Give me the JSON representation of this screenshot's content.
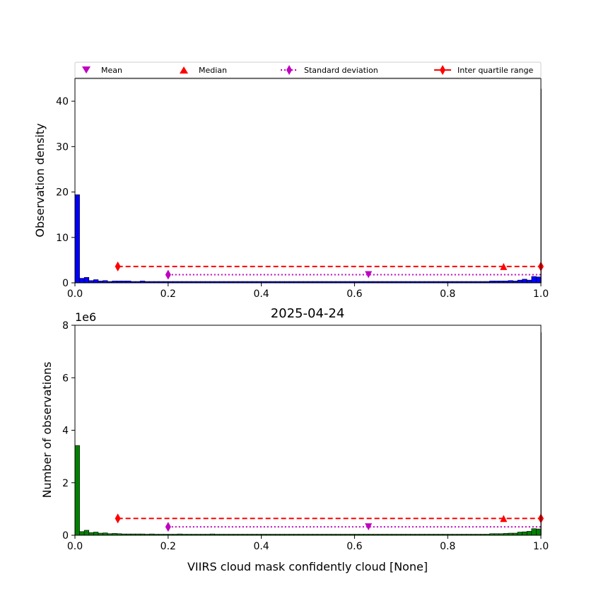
{
  "legend": {
    "mean": "Mean",
    "median": "Median",
    "std": "Standard deviation",
    "iqr": "Inter quartile range"
  },
  "colors": {
    "top_bars": "#0000ff",
    "bottom_bars": "#008000",
    "mean_marker": "#bf00bf",
    "median_marker": "#ff0000",
    "std_line": "#bf00bf",
    "iqr_line": "#ff0000"
  },
  "chart_data": [
    {
      "type": "bar",
      "title": "",
      "xlabel": "",
      "ylabel": "Observation density",
      "xlim": [
        0.0,
        1.0
      ],
      "ylim": [
        0,
        45
      ],
      "xticks": [
        "0.0",
        "0.2",
        "0.4",
        "0.6",
        "0.8",
        "1.0"
      ],
      "yticks": [
        "0",
        "10",
        "20",
        "30",
        "40"
      ],
      "bin_width": 0.01,
      "values": [
        19.4,
        1.0,
        1.2,
        0.5,
        0.7,
        0.4,
        0.5,
        0.3,
        0.4,
        0.4,
        0.4,
        0.4,
        0.3,
        0.3,
        0.4,
        0.3,
        0.3,
        0.3,
        0.3,
        0.3,
        0.3,
        0.3,
        0.3,
        0.3,
        0.3,
        0.3,
        0.3,
        0.3,
        0.3,
        0.3,
        0.3,
        0.3,
        0.3,
        0.3,
        0.3,
        0.3,
        0.3,
        0.3,
        0.3,
        0.3,
        0.3,
        0.3,
        0.3,
        0.3,
        0.3,
        0.3,
        0.3,
        0.3,
        0.3,
        0.3,
        0.3,
        0.3,
        0.3,
        0.3,
        0.3,
        0.3,
        0.3,
        0.3,
        0.3,
        0.3,
        0.3,
        0.3,
        0.3,
        0.3,
        0.3,
        0.3,
        0.3,
        0.3,
        0.3,
        0.3,
        0.3,
        0.3,
        0.3,
        0.3,
        0.3,
        0.3,
        0.3,
        0.3,
        0.3,
        0.3,
        0.3,
        0.3,
        0.3,
        0.3,
        0.3,
        0.3,
        0.3,
        0.3,
        0.3,
        0.4,
        0.4,
        0.4,
        0.4,
        0.5,
        0.4,
        0.6,
        0.8,
        0.6,
        1.4,
        1.3,
        42.7
      ],
      "stats": {
        "mean": {
          "x": 0.63,
          "y": 1.8
        },
        "median": {
          "x": 0.92,
          "y": 3.6
        },
        "std": {
          "x_range": [
            0.2,
            1.0
          ],
          "y": 1.8
        },
        "iqr": {
          "x_range": [
            0.092,
            1.0
          ],
          "y": 3.6
        }
      }
    },
    {
      "type": "bar",
      "title": "2025-04-24",
      "xlabel": "VIIRS cloud mask confidently cloud [None]",
      "ylabel": "Number of observations",
      "y_offset_label": "1e6",
      "xlim": [
        0.0,
        1.0
      ],
      "ylim": [
        0,
        8.0
      ],
      "xticks": [
        "0.0",
        "0.2",
        "0.4",
        "0.6",
        "0.8",
        "1.0"
      ],
      "yticks": [
        "0",
        "2",
        "4",
        "6",
        "8"
      ],
      "bin_width": 0.01,
      "values": [
        3.42,
        0.14,
        0.19,
        0.1,
        0.12,
        0.08,
        0.09,
        0.06,
        0.07,
        0.06,
        0.05,
        0.05,
        0.05,
        0.05,
        0.05,
        0.04,
        0.05,
        0.04,
        0.04,
        0.04,
        0.04,
        0.04,
        0.05,
        0.04,
        0.04,
        0.04,
        0.04,
        0.04,
        0.04,
        0.05,
        0.04,
        0.04,
        0.04,
        0.04,
        0.04,
        0.04,
        0.04,
        0.04,
        0.04,
        0.04,
        0.04,
        0.04,
        0.04,
        0.04,
        0.04,
        0.04,
        0.04,
        0.04,
        0.04,
        0.04,
        0.04,
        0.04,
        0.04,
        0.04,
        0.04,
        0.04,
        0.04,
        0.04,
        0.04,
        0.04,
        0.04,
        0.04,
        0.04,
        0.04,
        0.04,
        0.04,
        0.04,
        0.04,
        0.04,
        0.04,
        0.04,
        0.04,
        0.04,
        0.04,
        0.04,
        0.04,
        0.04,
        0.04,
        0.04,
        0.04,
        0.04,
        0.04,
        0.04,
        0.04,
        0.04,
        0.04,
        0.04,
        0.04,
        0.04,
        0.06,
        0.06,
        0.06,
        0.07,
        0.08,
        0.08,
        0.12,
        0.13,
        0.15,
        0.25,
        0.24,
        7.72
      ],
      "stats": {
        "mean": {
          "x": 0.63,
          "y": 0.32
        },
        "median": {
          "x": 0.92,
          "y": 0.64
        },
        "std": {
          "x_range": [
            0.2,
            1.0
          ],
          "y": 0.32
        },
        "iqr": {
          "x_range": [
            0.092,
            1.0
          ],
          "y": 0.64
        }
      }
    }
  ]
}
